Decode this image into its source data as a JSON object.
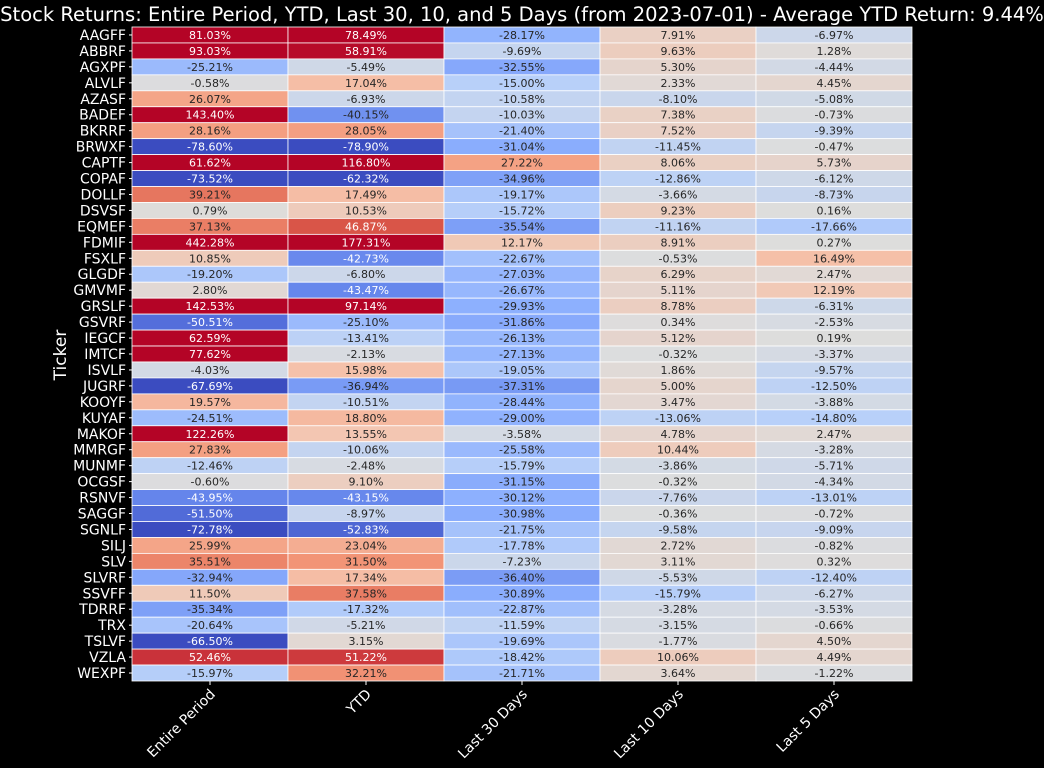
{
  "chart_data": {
    "type": "heatmap",
    "title": "Stock Returns: Entire Period, YTD, Last 30, 10, and 5 Days (from 2023-07-01) - Average YTD Return: 9.44%",
    "ylabel": "Ticker",
    "xlabel": "",
    "columns": [
      "Entire Period",
      "YTD",
      "Last 30 Days",
      "Last 10 Days",
      "Last 5 Days"
    ],
    "rows": [
      "AAGFF",
      "ABBRF",
      "AGXPF",
      "ALVLF",
      "AZASF",
      "BADEF",
      "BKRRF",
      "BRWXF",
      "CAPTF",
      "COPAF",
      "DOLLF",
      "DSVSF",
      "EQMEF",
      "FDMIF",
      "FSXLF",
      "GLGDF",
      "GMVMF",
      "GRSLF",
      "GSVRF",
      "IEGCF",
      "IMTCF",
      "ISVLF",
      "JUGRF",
      "KOOYF",
      "KUYAF",
      "MAKOF",
      "MMRGF",
      "MUNMF",
      "OCGSF",
      "RSNVF",
      "SAGGF",
      "SGNLF",
      "SILJ",
      "SLV",
      "SLVRF",
      "SSVFF",
      "TDRRF",
      "TRX",
      "TSLVF",
      "VZLA",
      "WEXPF"
    ],
    "values": [
      [
        81.03,
        78.49,
        -28.17,
        7.91,
        -6.97
      ],
      [
        93.03,
        58.91,
        -9.69,
        9.63,
        1.28
      ],
      [
        -25.21,
        -5.49,
        -32.55,
        5.3,
        -4.44
      ],
      [
        -0.58,
        17.04,
        -15.0,
        2.33,
        4.45
      ],
      [
        26.07,
        -6.93,
        -10.58,
        -8.1,
        -5.08
      ],
      [
        143.4,
        -40.15,
        -10.03,
        7.38,
        -0.73
      ],
      [
        28.16,
        28.05,
        -21.4,
        7.52,
        -9.39
      ],
      [
        -78.6,
        -78.9,
        -31.04,
        -11.45,
        -0.47
      ],
      [
        61.62,
        116.8,
        27.22,
        8.06,
        5.73
      ],
      [
        -73.52,
        -62.32,
        -34.96,
        -12.86,
        -6.12
      ],
      [
        39.21,
        17.49,
        -19.17,
        -3.66,
        -8.73
      ],
      [
        0.79,
        10.53,
        -15.72,
        9.23,
        0.16
      ],
      [
        37.13,
        46.87,
        -35.54,
        -11.16,
        -17.66
      ],
      [
        442.28,
        177.31,
        12.17,
        8.91,
        0.27
      ],
      [
        10.85,
        -42.73,
        -22.67,
        -0.53,
        16.49
      ],
      [
        -19.2,
        -6.8,
        -27.03,
        6.29,
        2.47
      ],
      [
        2.8,
        -43.47,
        -26.67,
        5.11,
        12.19
      ],
      [
        142.53,
        97.14,
        -29.93,
        8.78,
        -6.31
      ],
      [
        -50.51,
        -25.1,
        -31.86,
        0.34,
        -2.53
      ],
      [
        62.59,
        -13.41,
        -26.13,
        5.12,
        0.19
      ],
      [
        77.62,
        -2.13,
        -27.13,
        -0.32,
        -3.37
      ],
      [
        -4.03,
        15.98,
        -19.05,
        1.86,
        -9.57
      ],
      [
        -67.69,
        -36.94,
        -37.31,
        5.0,
        -12.5
      ],
      [
        19.57,
        -10.51,
        -28.44,
        3.47,
        -3.88
      ],
      [
        -24.51,
        18.8,
        -29.0,
        -13.06,
        -14.8
      ],
      [
        122.26,
        13.55,
        -3.58,
        4.78,
        2.47
      ],
      [
        27.83,
        -10.06,
        -25.58,
        10.44,
        -3.28
      ],
      [
        -12.46,
        -2.48,
        -15.79,
        -3.86,
        -5.71
      ],
      [
        -0.6,
        9.1,
        -31.15,
        -0.32,
        -4.34
      ],
      [
        -43.95,
        -43.15,
        -30.12,
        -7.76,
        -13.01
      ],
      [
        -51.5,
        -8.97,
        -30.98,
        -0.36,
        -0.72
      ],
      [
        -72.78,
        -52.83,
        -21.75,
        -9.58,
        -9.09
      ],
      [
        25.99,
        23.04,
        -17.78,
        2.72,
        -0.82
      ],
      [
        35.51,
        31.5,
        -7.23,
        3.11,
        0.32
      ],
      [
        -32.94,
        17.34,
        -36.4,
        -5.53,
        -12.4
      ],
      [
        11.5,
        37.58,
        -30.89,
        -15.79,
        -6.27
      ],
      [
        -35.34,
        -17.32,
        -22.87,
        -3.28,
        -3.53
      ],
      [
        -20.64,
        -5.21,
        -11.59,
        -3.15,
        -0.66
      ],
      [
        -66.5,
        3.15,
        -19.69,
        -1.77,
        4.5
      ],
      [
        52.46,
        51.22,
        -18.42,
        10.06,
        4.49
      ],
      [
        -15.97,
        32.21,
        -21.71,
        3.64,
        -1.22
      ]
    ],
    "value_format": "percent_2dp",
    "colormap": "coolwarm",
    "color_range": [
      -60,
      60
    ],
    "colorbar": false,
    "grid": true,
    "background": "#000000",
    "text_color": "#ffffff"
  }
}
